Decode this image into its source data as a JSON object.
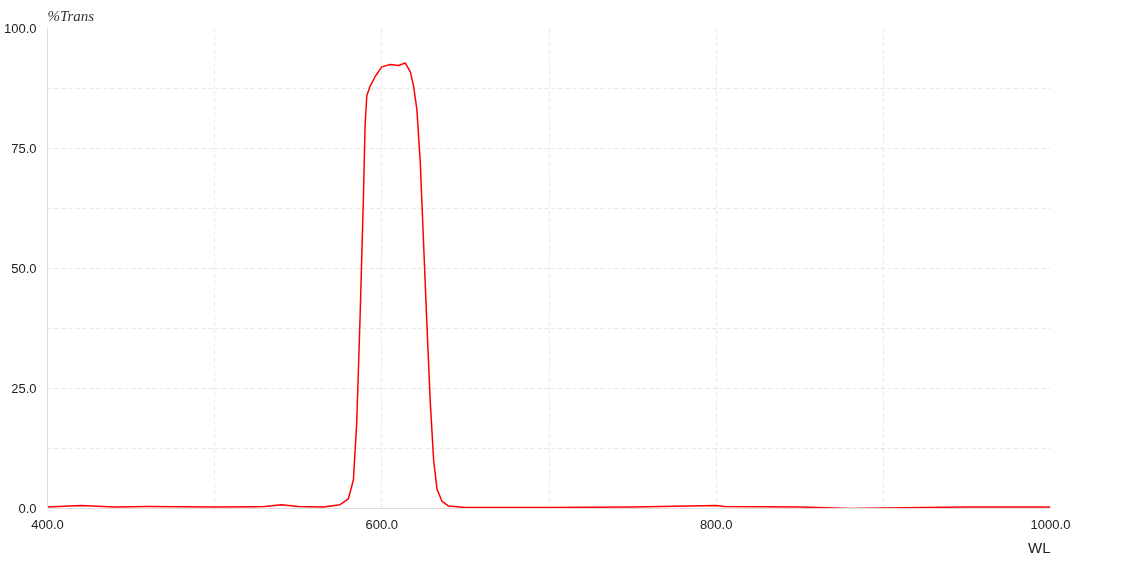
{
  "chart_data": {
    "type": "line",
    "xlabel": "WL",
    "ylabel": "%Trans",
    "xlim": [
      400,
      1000
    ],
    "ylim": [
      0,
      100
    ],
    "xticks": [
      {
        "value": 400,
        "label": "400.0"
      },
      {
        "value": 500,
        "label": null
      },
      {
        "value": 600,
        "label": "600.0"
      },
      {
        "value": 700,
        "label": null
      },
      {
        "value": 800,
        "label": "800.0"
      },
      {
        "value": 900,
        "label": null
      },
      {
        "value": 1000,
        "label": "1000.0"
      }
    ],
    "yticks": [
      {
        "value": 0,
        "label": "0.0"
      },
      {
        "value": 12.5,
        "label": null
      },
      {
        "value": 25,
        "label": "25.0"
      },
      {
        "value": 37.5,
        "label": null
      },
      {
        "value": 50,
        "label": "50.0"
      },
      {
        "value": 62.5,
        "label": null
      },
      {
        "value": 75,
        "label": "75.0"
      },
      {
        "value": 87.5,
        "label": null
      },
      {
        "value": 100,
        "label": "100.0"
      }
    ],
    "grid": true,
    "line_style": "solid",
    "series": [
      {
        "color": "#ff0000",
        "x": [
          400,
          420,
          440,
          460,
          500,
          530,
          540,
          550,
          565,
          575,
          580,
          583,
          585,
          587,
          589,
          590,
          591,
          593,
          596,
          600,
          605,
          610,
          614,
          617,
          619,
          621,
          623,
          625,
          627,
          629,
          631,
          633,
          636,
          640,
          650,
          700,
          750,
          800,
          805,
          850,
          880,
          900,
          950,
          1000
        ],
        "values": [
          0.3,
          0.6,
          0.3,
          0.4,
          0.3,
          0.4,
          0.8,
          0.4,
          0.3,
          0.8,
          2,
          6,
          18,
          40,
          65,
          80,
          86,
          88,
          90,
          92,
          92.5,
          92.3,
          92.8,
          91,
          88,
          83,
          72,
          55,
          38,
          22,
          10,
          4,
          1.5,
          0.5,
          0.2,
          0.2,
          0.3,
          0.6,
          0.4,
          0.3,
          0,
          0.1,
          0.3,
          0.3
        ]
      }
    ]
  }
}
